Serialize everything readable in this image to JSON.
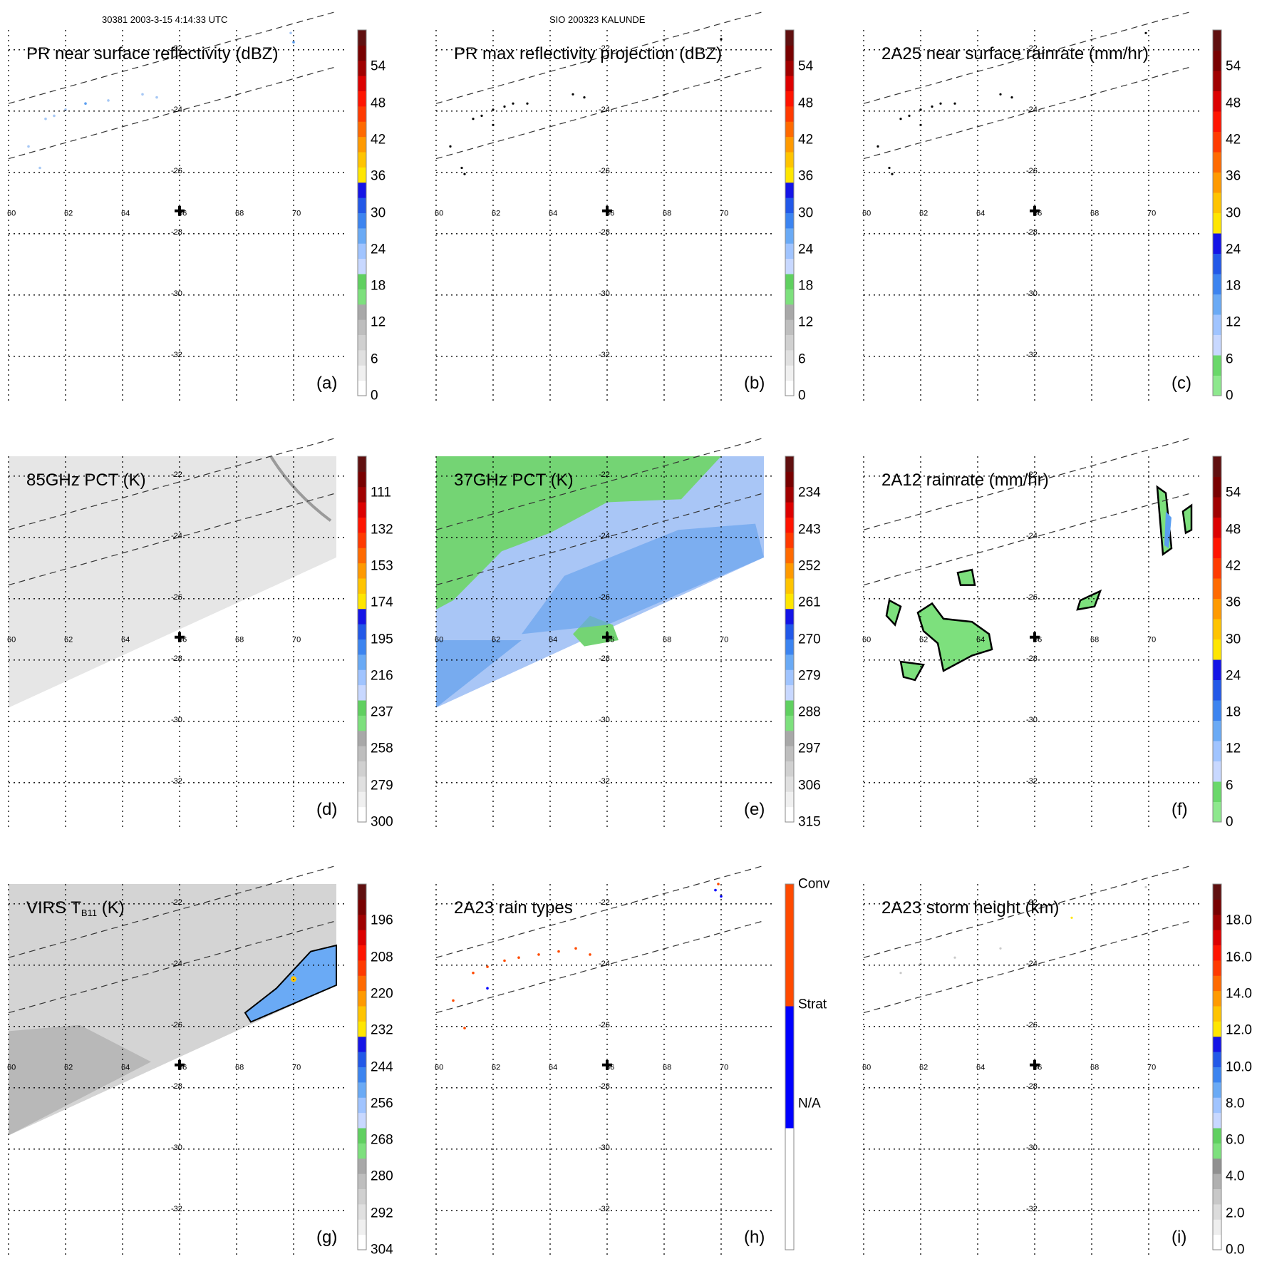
{
  "header": {
    "left": "30381 2003-3-15 4:14:33 UTC",
    "center": "SIO 200323 KALUNDE"
  },
  "colors": {
    "grid": "#000000",
    "swath_dash": "#333333",
    "rain_green": "#7de07d",
    "light_blue": "#a6c8f5",
    "mid_blue": "#5a9ef0",
    "conv": "#ff4a00",
    "strat": "#0000ff",
    "na": "#ffffff"
  },
  "map": {
    "lon_ticks": [
      "60",
      "62",
      "64",
      "66",
      "68",
      "70"
    ],
    "lat_ticks": [
      "-22",
      "-24",
      "-26",
      "-28",
      "-30",
      "-32"
    ],
    "storm_center": {
      "lon": 66,
      "lat": -27.3
    },
    "storm_marker": "cross-icon"
  },
  "colorbars": {
    "dbz": {
      "colors": [
        "#ffffff",
        "#f0f0f0",
        "#e0e0e0",
        "#d0d0d0",
        "#bebebe",
        "#a8a8a8",
        "#7de07d",
        "#60d060",
        "#c8d8ff",
        "#a0c4ff",
        "#6aaaf5",
        "#3c84f0",
        "#2258e8",
        "#1414e6",
        "#ffe600",
        "#ffc400",
        "#ff9a00",
        "#ff6a00",
        "#ff3a00",
        "#ff1400",
        "#dc0000",
        "#a00000",
        "#780000",
        "#601010"
      ]
    },
    "gray": {
      "colors": [
        "#ffffff",
        "#f0f0f0",
        "#e0e0e0",
        "#d0d0d0",
        "#bebebe",
        "#a8a8a8",
        "#7de07d",
        "#60d060",
        "#c8d8ff",
        "#a0c4ff",
        "#6aaaf5",
        "#3c84f0",
        "#2258e8",
        "#1414e6",
        "#ffe600",
        "#ffc400",
        "#ff9a00",
        "#ff6a00",
        "#ff3a00",
        "#ff1400",
        "#dc0000",
        "#a00000",
        "#780000",
        "#601010"
      ]
    },
    "rain": {
      "colors": [
        "#8ee88e",
        "#6ad86a",
        "#c8d8ff",
        "#a0c4ff",
        "#6aaaf5",
        "#3c84f0",
        "#2258e8",
        "#1414e6",
        "#ffe600",
        "#ffc400",
        "#ff9a00",
        "#ff6a00",
        "#ff3a00",
        "#ff1400",
        "#dc0000",
        "#a00000",
        "#780000",
        "#601010"
      ]
    },
    "height": {
      "colors": [
        "#ffffff",
        "#eeeeee",
        "#dcdcdc",
        "#c8c8c8",
        "#b0b0b0",
        "#909090",
        "#7de07d",
        "#60d060",
        "#c8d8ff",
        "#a0c4ff",
        "#6aaaf5",
        "#3c84f0",
        "#2258e8",
        "#1414e6",
        "#ffe600",
        "#ffc400",
        "#ff9a00",
        "#ff6a00",
        "#ff3a00",
        "#ff1400",
        "#dc0000",
        "#a00000",
        "#780000",
        "#601010"
      ]
    },
    "types": {
      "colors": [
        "#ffffff",
        "#0000ff",
        "#ff4a00"
      ]
    }
  },
  "panels": [
    {
      "id": "a",
      "title": "PR near surface reflectivity (dBZ)",
      "label": "(a)",
      "cbar": "dbz",
      "ticks": [
        "0",
        "6",
        "12",
        "18",
        "24",
        "30",
        "36",
        "42",
        "48",
        "54"
      ]
    },
    {
      "id": "b",
      "title": "PR max reflectivity projection (dBZ)",
      "label": "(b)",
      "cbar": "dbz",
      "ticks": [
        "0",
        "6",
        "12",
        "18",
        "24",
        "30",
        "36",
        "42",
        "48",
        "54"
      ]
    },
    {
      "id": "c",
      "title": "2A25 near surface rainrate (mm/hr)",
      "label": "(c)",
      "cbar": "rain",
      "ticks": [
        "0",
        "6",
        "12",
        "18",
        "24",
        "30",
        "36",
        "42",
        "48",
        "54"
      ]
    },
    {
      "id": "d",
      "title": "85GHz PCT (K)",
      "label": "(d)",
      "cbar": "gray",
      "ticks": [
        "300",
        "279",
        "258",
        "237",
        "216",
        "195",
        "174",
        "153",
        "132",
        "111"
      ]
    },
    {
      "id": "e",
      "title": "37GHz PCT (K)",
      "label": "(e)",
      "cbar": "gray",
      "ticks": [
        "315",
        "306",
        "297",
        "288",
        "279",
        "270",
        "261",
        "252",
        "243",
        "234"
      ]
    },
    {
      "id": "f",
      "title": "2A12 rainrate (mm/hr)",
      "label": "(f)",
      "cbar": "rain",
      "ticks": [
        "0",
        "6",
        "12",
        "18",
        "24",
        "30",
        "36",
        "42",
        "48",
        "54"
      ]
    },
    {
      "id": "g",
      "title_main": "VIRS T",
      "title_sub": "B11",
      "title_tail": " (K)",
      "label": "(g)",
      "cbar": "gray",
      "ticks": [
        "304",
        "292",
        "280",
        "268",
        "256",
        "244",
        "232",
        "220",
        "208",
        "196"
      ]
    },
    {
      "id": "h",
      "title": "2A23 rain types",
      "label": "(h)",
      "cbar": "types",
      "ticks": [
        "N/A",
        "Strat",
        "Conv"
      ]
    },
    {
      "id": "i",
      "title": "2A23 storm height (km)",
      "label": "(i)",
      "cbar": "height",
      "ticks": [
        "0.0",
        "2.0",
        "4.0",
        "6.0",
        "8.0",
        "10.0",
        "12.0",
        "14.0",
        "16.0",
        "18.0"
      ]
    }
  ],
  "chart_data": {
    "type": "map-grid",
    "lon_range": [
      60,
      71.5
    ],
    "lat_range": [
      -33,
      -21
    ],
    "swath_edges": [
      {
        "name": "PR swath left",
        "points": [
          [
            60,
            -23.8
          ],
          [
            71.5,
            -20.8
          ]
        ]
      },
      {
        "name": "PR swath right",
        "points": [
          [
            60,
            -25.6
          ],
          [
            71.5,
            -22.6
          ]
        ]
      }
    ],
    "pr_echoes_a": [
      [
        61.3,
        -24.3,
        24
      ],
      [
        61.6,
        -24.2,
        22
      ],
      [
        62,
        -24.0,
        22
      ],
      [
        62.7,
        -23.8,
        26
      ],
      [
        63.5,
        -23.7,
        22
      ],
      [
        64.7,
        -23.5,
        22
      ],
      [
        65.2,
        -23.6,
        20
      ],
      [
        60.7,
        -25.2,
        20
      ],
      [
        61.1,
        -25.9,
        20
      ],
      [
        69.9,
        -21.5,
        24
      ],
      [
        70.0,
        -21.8,
        26
      ]
    ],
    "pr_echoes_b": [
      [
        61.3,
        -24.3
      ],
      [
        61.6,
        -24.2
      ],
      [
        62,
        -24.0
      ],
      [
        62.4,
        -23.9
      ],
      [
        62.7,
        -23.8
      ],
      [
        63.2,
        -23.8
      ],
      [
        64.8,
        -23.5
      ],
      [
        65.2,
        -23.6
      ],
      [
        60.5,
        -25.2
      ],
      [
        60.9,
        -25.9
      ],
      [
        61.0,
        -26.1
      ],
      [
        62.0,
        -24.5
      ],
      [
        70.0,
        -21.7
      ]
    ],
    "pr_rain_c": [
      [
        61.3,
        -24.3
      ],
      [
        61.6,
        -24.2
      ],
      [
        62,
        -24.0
      ],
      [
        62.4,
        -23.9
      ],
      [
        62.7,
        -23.8
      ],
      [
        63.2,
        -23.8
      ],
      [
        64.8,
        -23.5
      ],
      [
        65.2,
        -23.6
      ],
      [
        60.5,
        -25.2
      ],
      [
        60.9,
        -25.9
      ],
      [
        61.0,
        -26.1
      ],
      [
        62.0,
        -24.5
      ],
      [
        69.9,
        -21.5
      ]
    ],
    "rain_types_h": [
      [
        61.3,
        -24.3,
        "conv"
      ],
      [
        61.8,
        -24.1,
        "conv"
      ],
      [
        62.4,
        -23.9,
        "conv"
      ],
      [
        62.9,
        -23.8,
        "conv"
      ],
      [
        63.6,
        -23.7,
        "conv"
      ],
      [
        64.3,
        -23.6,
        "conv"
      ],
      [
        64.9,
        -23.5,
        "conv"
      ],
      [
        65.4,
        -23.7,
        "conv"
      ],
      [
        60.6,
        -25.2,
        "conv"
      ],
      [
        61.0,
        -26.1,
        "conv"
      ],
      [
        61.8,
        -24.8,
        "strat"
      ],
      [
        69.8,
        -21.6,
        "strat"
      ],
      [
        70.0,
        -21.8,
        "strat"
      ],
      [
        69.9,
        -21.4,
        "conv"
      ]
    ],
    "storm_height_i": [
      [
        61.3,
        -24.3,
        2.0
      ],
      [
        62.0,
        -24.0,
        2.0
      ],
      [
        63.2,
        -23.8,
        1.5
      ],
      [
        64.8,
        -23.5,
        2.0
      ],
      [
        69.9,
        -21.5,
        4.0
      ],
      [
        67.3,
        -22.5,
        12.0
      ]
    ]
  }
}
